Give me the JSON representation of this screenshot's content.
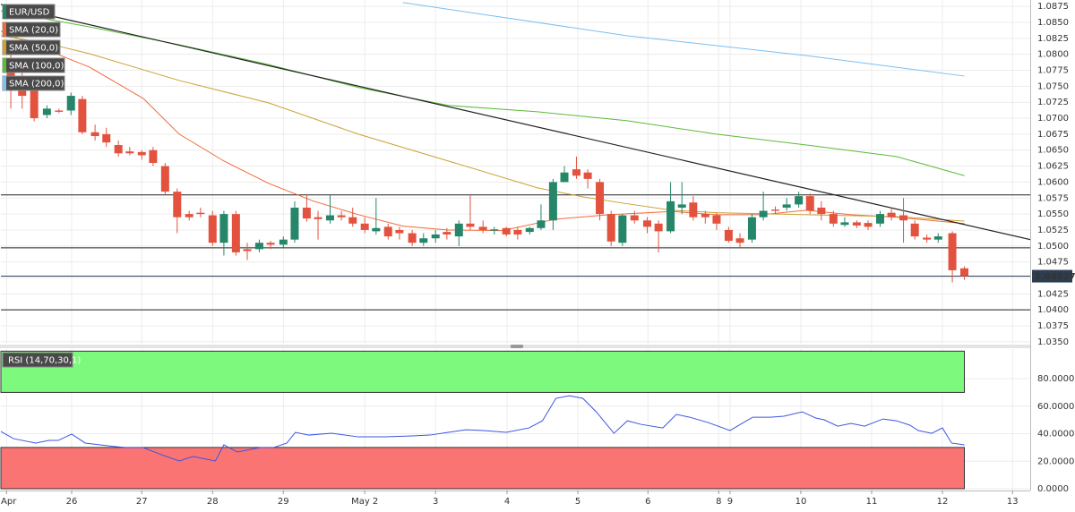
{
  "chart_data": [
    {
      "type": "candlestick",
      "xlim": [
        0,
        14.54
      ],
      "ylim": [
        1.0347,
        1.0885
      ],
      "yticks": [
        {
          "value": 1.035,
          "label": "1.0350"
        },
        {
          "value": 1.0375,
          "label": "1.0375"
        },
        {
          "value": 1.04,
          "label": "1.0400"
        },
        {
          "value": 1.0425,
          "label": "1.0425"
        },
        {
          "value": 1.045,
          "label": "1.0450"
        },
        {
          "value": 1.0475,
          "label": "1.0475"
        },
        {
          "value": 1.05,
          "label": "1.0500"
        },
        {
          "value": 1.0525,
          "label": "1.0525"
        },
        {
          "value": 1.055,
          "label": "1.0550"
        },
        {
          "value": 1.0575,
          "label": "1.0575"
        },
        {
          "value": 1.06,
          "label": "1.0600"
        },
        {
          "value": 1.0625,
          "label": "1.0625"
        },
        {
          "value": 1.065,
          "label": "1.0650"
        },
        {
          "value": 1.0675,
          "label": "1.0675"
        },
        {
          "value": 1.07,
          "label": "1.0700"
        },
        {
          "value": 1.0725,
          "label": "1.0725"
        },
        {
          "value": 1.075,
          "label": "1.0750"
        },
        {
          "value": 1.0775,
          "label": "1.0775"
        },
        {
          "value": 1.08,
          "label": "1.0800"
        },
        {
          "value": 1.0825,
          "label": "1.0825"
        },
        {
          "value": 1.085,
          "label": "1.0850"
        },
        {
          "value": 1.0875,
          "label": "1.0875"
        }
      ],
      "grid": true,
      "candles": {
        "name": "EUR/USD",
        "up_color": "#26866a",
        "down_color": "#e3523f",
        "x": [
          0.14,
          0.3,
          0.47,
          0.65,
          0.82,
          0.99,
          1.15,
          1.33,
          1.49,
          1.66,
          1.82,
          1.99,
          2.15,
          2.32,
          2.49,
          2.66,
          2.82,
          2.99,
          3.15,
          3.32,
          3.48,
          3.65,
          3.81,
          3.99,
          4.15,
          4.32,
          4.48,
          4.65,
          4.81,
          4.97,
          5.14,
          5.3,
          5.47,
          5.63,
          5.81,
          5.97,
          6.14,
          6.3,
          6.47,
          6.63,
          6.81,
          6.97,
          7.14,
          7.3,
          7.47,
          7.63,
          7.8,
          7.96,
          8.13,
          8.29,
          8.46,
          8.62,
          8.78,
          8.95,
          9.13,
          9.29,
          9.46,
          9.62,
          9.78,
          9.95,
          10.11,
          10.28,
          10.44,
          10.61,
          10.77,
          10.94,
          11.1,
          11.27,
          11.43,
          11.59,
          11.76,
          11.92,
          12.09,
          12.25,
          12.42,
          12.58,
          12.75,
          12.91,
          13.08,
          13.24,
          13.44,
          13.61
        ],
        "open": [
          1.079,
          1.076,
          1.0745,
          1.0705,
          1.0712,
          1.0712,
          1.073,
          1.0678,
          1.0675,
          1.0658,
          1.0648,
          1.0647,
          1.065,
          1.0625,
          1.0585,
          1.055,
          1.0552,
          1.0548,
          1.0505,
          1.055,
          1.0495,
          1.0495,
          1.0505,
          1.0502,
          1.051,
          1.056,
          1.0545,
          1.054,
          1.0548,
          1.0545,
          1.0535,
          1.0523,
          1.053,
          1.0525,
          1.052,
          1.0505,
          1.0512,
          1.0522,
          1.0515,
          1.0535,
          1.053,
          1.0524,
          1.0528,
          1.0525,
          1.0522,
          1.0528,
          1.054,
          1.06,
          1.062,
          1.0615,
          1.06,
          1.055,
          1.0505,
          1.0548,
          1.054,
          1.0535,
          1.0523,
          1.056,
          1.0568,
          1.055,
          1.0548,
          1.0525,
          1.0512,
          1.051,
          1.0545,
          1.0557,
          1.056,
          1.0565,
          1.0578,
          1.056,
          1.055,
          1.0533,
          1.0537,
          1.0536,
          1.0535,
          1.0552,
          1.0548,
          1.0535,
          1.0513,
          1.051,
          1.052,
          1.0465
        ],
        "high": [
          1.08,
          1.0775,
          1.075,
          1.072,
          1.0715,
          1.074,
          1.0735,
          1.069,
          1.0685,
          1.0665,
          1.0655,
          1.065,
          1.0655,
          1.063,
          1.059,
          1.0555,
          1.056,
          1.0555,
          1.0555,
          1.0555,
          1.0505,
          1.051,
          1.0508,
          1.0515,
          1.057,
          1.058,
          1.0555,
          1.058,
          1.0555,
          1.056,
          1.0545,
          1.0575,
          1.0535,
          1.053,
          1.0525,
          1.052,
          1.0525,
          1.0528,
          1.054,
          1.058,
          1.054,
          1.053,
          1.053,
          1.053,
          1.053,
          1.0565,
          1.0605,
          1.0625,
          1.064,
          1.062,
          1.0605,
          1.0555,
          1.055,
          1.0555,
          1.0545,
          1.054,
          1.06,
          1.06,
          1.0578,
          1.0555,
          1.0552,
          1.053,
          1.052,
          1.055,
          1.0585,
          1.0562,
          1.0575,
          1.0585,
          1.0582,
          1.057,
          1.0555,
          1.0545,
          1.054,
          1.054,
          1.0555,
          1.056,
          1.0575,
          1.054,
          1.0518,
          1.052,
          1.0523,
          1.0468
        ],
        "low": [
          1.0715,
          1.0715,
          1.0695,
          1.07,
          1.0708,
          1.0705,
          1.0675,
          1.0665,
          1.0655,
          1.064,
          1.0642,
          1.0635,
          1.0625,
          1.058,
          1.052,
          1.054,
          1.0545,
          1.05,
          1.0485,
          1.0485,
          1.0478,
          1.049,
          1.0495,
          1.0498,
          1.0505,
          1.0538,
          1.051,
          1.0535,
          1.054,
          1.053,
          1.052,
          1.0518,
          1.051,
          1.051,
          1.05,
          1.05,
          1.0505,
          1.051,
          1.05,
          1.0525,
          1.052,
          1.0518,
          1.0515,
          1.051,
          1.0518,
          1.0525,
          1.0525,
          1.06,
          1.0605,
          1.059,
          1.054,
          1.05,
          1.05,
          1.0535,
          1.052,
          1.049,
          1.052,
          1.055,
          1.054,
          1.0535,
          1.0525,
          1.0505,
          1.0498,
          1.0505,
          1.054,
          1.055,
          1.0555,
          1.056,
          1.055,
          1.054,
          1.053,
          1.053,
          1.0528,
          1.0525,
          1.053,
          1.054,
          1.0505,
          1.051,
          1.0505,
          1.0505,
          1.0443,
          1.0447
        ],
        "close": [
          1.0745,
          1.0735,
          1.07,
          1.0715,
          1.071,
          1.0735,
          1.0678,
          1.0672,
          1.0662,
          1.0645,
          1.0645,
          1.0642,
          1.063,
          1.0585,
          1.0545,
          1.0545,
          1.055,
          1.0505,
          1.055,
          1.049,
          1.0492,
          1.0505,
          1.0502,
          1.051,
          1.056,
          1.0543,
          1.0542,
          1.0548,
          1.0545,
          1.0535,
          1.0525,
          1.0528,
          1.0515,
          1.052,
          1.0505,
          1.0512,
          1.0518,
          1.0518,
          1.0535,
          1.053,
          1.0525,
          1.0526,
          1.0518,
          1.0518,
          1.0528,
          1.054,
          1.06,
          1.0615,
          1.061,
          1.0605,
          1.055,
          1.0507,
          1.0548,
          1.054,
          1.053,
          1.0523,
          1.057,
          1.0565,
          1.0545,
          1.0545,
          1.0535,
          1.0508,
          1.0505,
          1.0545,
          1.0555,
          1.0555,
          1.0565,
          1.0578,
          1.0555,
          1.055,
          1.0535,
          1.0537,
          1.0532,
          1.053,
          1.055,
          1.0545,
          1.054,
          1.0515,
          1.051,
          1.0515,
          1.0462,
          1.0453
        ]
      },
      "series": [
        {
          "name": "SMA (20,0)",
          "color": "#f06b3a",
          "x": [
            0,
            0.62,
            1.25,
            2.01,
            2.52,
            3.15,
            3.78,
            4.42,
            5.05,
            5.68,
            6.32,
            7.08,
            7.84,
            8.59,
            9.48,
            10.11,
            10.75,
            11.38,
            12.01,
            12.65,
            13.61
          ],
          "values": [
            1.0836,
            1.0808,
            1.078,
            1.0731,
            1.0675,
            1.0633,
            1.0598,
            1.057,
            1.0549,
            1.0531,
            1.0525,
            1.0524,
            1.0542,
            1.0549,
            1.0554,
            1.0549,
            1.0549,
            1.0556,
            1.0549,
            1.0545,
            1.0535
          ]
        },
        {
          "name": "SMA (50,0)",
          "color": "#c9a234",
          "x": [
            0,
            0.62,
            1.25,
            2.52,
            3.78,
            5.05,
            6.32,
            7.58,
            8.22,
            8.85,
            9.48,
            10.11,
            11.38,
            12.65,
            13.61
          ],
          "values": [
            1.0829,
            1.0818,
            1.0801,
            1.0759,
            1.0724,
            1.0675,
            1.0633,
            1.0591,
            1.0577,
            1.0566,
            1.0556,
            1.0552,
            1.0549,
            1.0546,
            1.0539
          ]
        },
        {
          "name": "SMA (100,0)",
          "color": "#5dbb3a",
          "x": [
            0,
            1.25,
            2.52,
            3.78,
            5.05,
            6.32,
            7.58,
            8.85,
            10.11,
            11.38,
            12.65,
            13.61
          ],
          "values": [
            1.0868,
            1.0843,
            1.0815,
            1.0784,
            1.0748,
            1.072,
            1.071,
            1.0696,
            1.0675,
            1.0658,
            1.064,
            1.061
          ]
        },
        {
          "name": "SMA (200,0)",
          "color": "#7cbff0",
          "x": [
            5.68,
            8.85,
            11.38,
            13.61
          ],
          "values": [
            1.0881,
            1.0829,
            1.0798,
            1.0766
          ]
        }
      ],
      "trendline": {
        "color": "#222222",
        "x": [
          0,
          14.54
        ],
        "values": [
          1.0878,
          1.051
        ]
      },
      "hlines": [
        1.058,
        1.0497,
        1.04
      ],
      "last_price": 1.04527
    },
    {
      "type": "line",
      "title": "RSI (14,70,30,1)",
      "xlim": [
        0,
        14.54
      ],
      "ylim": [
        -1.3,
        101.5
      ],
      "xticks": [
        {
          "value": 0.08,
          "label": "Apr"
        },
        {
          "value": 1,
          "label": "26"
        },
        {
          "value": 1.99,
          "label": "27"
        },
        {
          "value": 2.99,
          "label": "28"
        },
        {
          "value": 3.99,
          "label": "29"
        },
        {
          "value": 5.14,
          "label": "May 2"
        },
        {
          "value": 6.14,
          "label": "3"
        },
        {
          "value": 7.15,
          "label": "4"
        },
        {
          "value": 8.15,
          "label": "5"
        },
        {
          "value": 9.14,
          "label": "6"
        },
        {
          "value": 10.14,
          "label": "8"
        },
        {
          "value": 10.3,
          "label": "9"
        },
        {
          "value": 11.3,
          "label": "10"
        },
        {
          "value": 12.3,
          "label": "11"
        },
        {
          "value": 13.3,
          "label": "12"
        },
        {
          "value": 14.29,
          "label": "13"
        }
      ],
      "yticks": [
        {
          "value": 0,
          "label": "0.0000"
        },
        {
          "value": 20,
          "label": "20.0000"
        },
        {
          "value": 40,
          "label": "40.0000"
        },
        {
          "value": 60,
          "label": "60.0000"
        },
        {
          "value": 80,
          "label": "80.0000"
        }
      ],
      "grid": true,
      "zones": [
        {
          "from": 70,
          "to": 100,
          "x_end": 13.61,
          "color": "#7dfa7d"
        },
        {
          "from": 0,
          "to": 30,
          "x_end": 13.61,
          "color": "#fa7474"
        }
      ],
      "series": [
        {
          "color": "#3b55e0",
          "x": [
            0,
            0.18,
            0.49,
            0.68,
            0.81,
            1.0,
            1.19,
            1.51,
            1.76,
            2.01,
            2.27,
            2.52,
            2.71,
            2.84,
            3.03,
            3.15,
            3.34,
            3.66,
            3.85,
            4.04,
            4.16,
            4.35,
            4.67,
            5.05,
            5.43,
            5.81,
            6.06,
            6.32,
            6.57,
            6.82,
            7.14,
            7.46,
            7.65,
            7.84,
            8.03,
            8.22,
            8.41,
            8.66,
            8.85,
            9.04,
            9.35,
            9.54,
            9.73,
            9.99,
            10.3,
            10.49,
            10.62,
            10.87,
            11.06,
            11.32,
            11.51,
            11.63,
            11.82,
            12.01,
            12.2,
            12.46,
            12.65,
            12.84,
            12.96,
            13.15,
            13.3,
            13.43,
            13.61
          ],
          "values": [
            41.6,
            36.4,
            33.2,
            35.1,
            35.1,
            39.7,
            33.2,
            31.2,
            29.9,
            29.9,
            24.7,
            20.2,
            23.4,
            22.1,
            20.2,
            31.9,
            26.7,
            29.9,
            29.9,
            33.2,
            41.0,
            39.0,
            40.3,
            37.7,
            37.7,
            38.4,
            39.0,
            41.0,
            42.9,
            42.3,
            41.0,
            44.2,
            49.4,
            65.7,
            67.6,
            65.7,
            55.9,
            40.3,
            49.4,
            46.8,
            44.2,
            54.0,
            52.0,
            48.1,
            42.3,
            48.1,
            52.0,
            52.0,
            52.7,
            55.9,
            51.4,
            50.1,
            45.5,
            47.5,
            45.5,
            50.7,
            49.4,
            46.2,
            42.3,
            40.3,
            44.2,
            33.2,
            31.9
          ]
        }
      ]
    }
  ]
}
